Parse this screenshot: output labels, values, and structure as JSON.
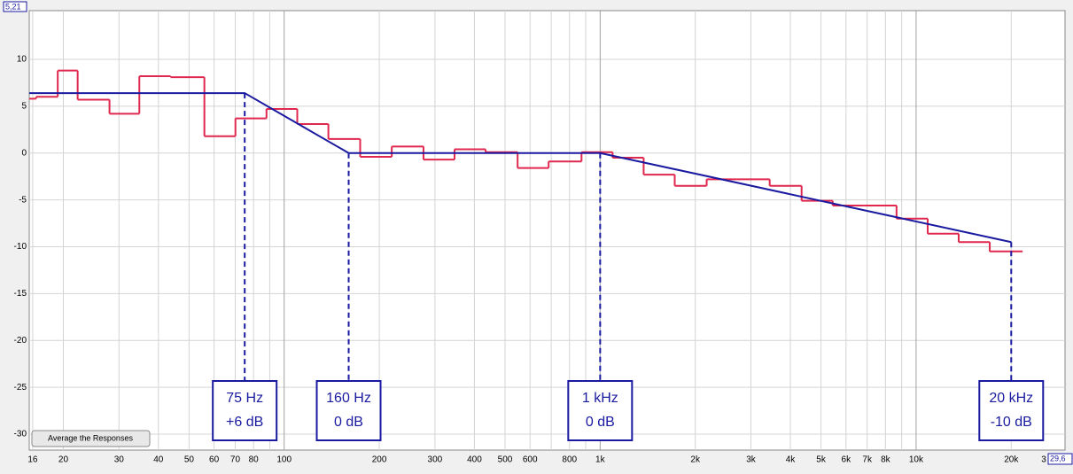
{
  "chart_data": {
    "type": "line",
    "log_x": true,
    "grid": true,
    "xlim": [
      15.6,
      29600
    ],
    "ylim": [
      -31.7,
      15.2
    ],
    "xticks": [
      16,
      20,
      30,
      40,
      50,
      60,
      70,
      80,
      100,
      200,
      300,
      400,
      500,
      600,
      800,
      {
        "value": 1000,
        "label": "1k"
      },
      {
        "value": 2000,
        "label": "2k"
      },
      {
        "value": 3000,
        "label": "3k"
      },
      {
        "value": 4000,
        "label": "4k"
      },
      {
        "value": 5000,
        "label": "5k"
      },
      {
        "value": 6000,
        "label": "6k"
      },
      {
        "value": 7000,
        "label": "7k"
      },
      {
        "value": 8000,
        "label": "8k"
      },
      {
        "value": 10000,
        "label": "10k"
      },
      {
        "value": 20000,
        "label": "20k"
      }
    ],
    "xgrid_extra": [
      90,
      700,
      900,
      9000
    ],
    "yticks": [
      10,
      5,
      0,
      -5,
      -10,
      -15,
      -20,
      -25,
      -30
    ],
    "step_series": {
      "color": "#e0284f",
      "bins": [
        15.6,
        16.4,
        19.2,
        22.2,
        28.0,
        34.8,
        43.7,
        55.9,
        70.1,
        87.9,
        110,
        138,
        174,
        219,
        276,
        346,
        434,
        548,
        687,
        873,
        1095,
        1373,
        1722,
        2173,
        2708,
        3440,
        4341,
        5445,
        6823,
        8670,
        10880,
        13640,
        17100,
        21730
      ],
      "values": [
        5.8,
        6.0,
        8.8,
        5.7,
        4.2,
        8.2,
        8.1,
        1.8,
        3.7,
        4.7,
        3.1,
        1.5,
        -0.4,
        0.7,
        -0.7,
        0.4,
        0.1,
        -1.6,
        -0.9,
        0.1,
        -0.5,
        -2.3,
        -3.5,
        -2.8,
        -2.8,
        -3.5,
        -5.1,
        -5.6,
        -5.6,
        -7.0,
        -8.6,
        -9.5,
        -10.5
      ]
    },
    "target_series": {
      "color": "#1a1aa0",
      "x": [
        15.6,
        75,
        160,
        1000,
        20000
      ],
      "values": [
        6.4,
        6.4,
        0,
        0,
        -9.5
      ]
    },
    "annotations": [
      {
        "x": 75,
        "y": 6.4,
        "lines": [
          "75 Hz",
          "+6 dB"
        ]
      },
      {
        "x": 160,
        "y": 0,
        "lines": [
          "160 Hz",
          "0 dB"
        ]
      },
      {
        "x": 1000,
        "y": 0,
        "lines": [
          "1 kHz",
          "0 dB"
        ]
      },
      {
        "x": 20000,
        "y": -9.5,
        "lines": [
          "20 kHz",
          "-10 dB"
        ]
      }
    ],
    "top_corner_label": "5,21",
    "right_corner_label": "29,6",
    "right_edge_label": "3",
    "button": "Average the Responses"
  }
}
